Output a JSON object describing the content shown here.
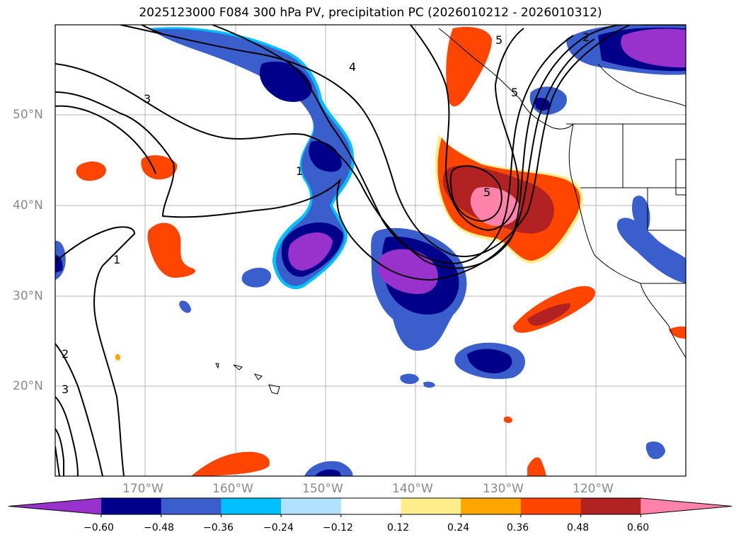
{
  "title": "2025123000 F084 300 hPa PV, precipitation PC (2026010212 - 2026010312)",
  "map": {
    "lat_labels": [
      "50°N",
      "40°N",
      "30°N",
      "20°N"
    ],
    "lon_labels": [
      "170°W",
      "160°W",
      "150°W",
      "140°W",
      "130°W",
      "120°W"
    ],
    "contour_labels": [
      "1",
      "1",
      "2",
      "2",
      "3",
      "3",
      "4",
      "5",
      "5",
      "5"
    ]
  },
  "colorbar": {
    "levels": [
      "−0.60",
      "−0.48",
      "−0.36",
      "−0.24",
      "−0.12",
      "0.12",
      "0.24",
      "0.36",
      "0.48",
      "0.60"
    ],
    "colors": [
      "#9932CC",
      "#00008B",
      "#3A5FCD",
      "#00BFFF",
      "#B0E2FF",
      "#FFFFFF",
      "#FFEC8B",
      "#FFA500",
      "#FF4500",
      "#B22222",
      "#FF82AB"
    ]
  }
}
